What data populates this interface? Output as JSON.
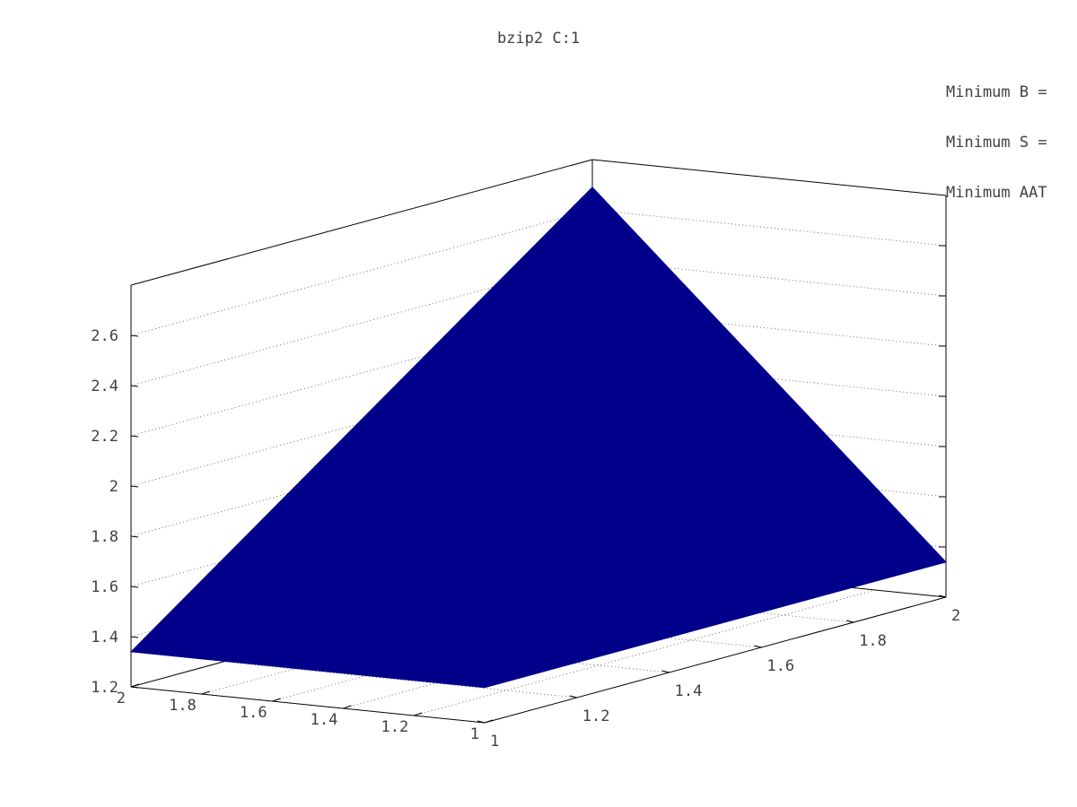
{
  "chart_data": {
    "type": "surface",
    "title": "bzip2 C:1",
    "x": [
      1,
      2
    ],
    "y": [
      1,
      2
    ],
    "z": [
      [
        1.34,
        1.34
      ],
      [
        1.34,
        2.69
      ]
    ],
    "xlim": [
      1,
      2
    ],
    "ylim": [
      1,
      2
    ],
    "zlim": [
      1.2,
      2.8
    ],
    "z_ticks": [
      "1.2",
      "1.4",
      "1.6",
      "1.8",
      "2",
      "2.2",
      "2.4",
      "2.6"
    ],
    "x_ticks": [
      "1",
      "1.2",
      "1.4",
      "1.6",
      "1.8",
      "2"
    ],
    "y_ticks": [
      "1",
      "1.2",
      "1.4",
      "1.6",
      "1.8",
      "2"
    ],
    "grid": true,
    "surface_color": "#00008b",
    "annotations": [
      "Minimum B =",
      "Minimum S =",
      "Minimum AAT"
    ]
  }
}
